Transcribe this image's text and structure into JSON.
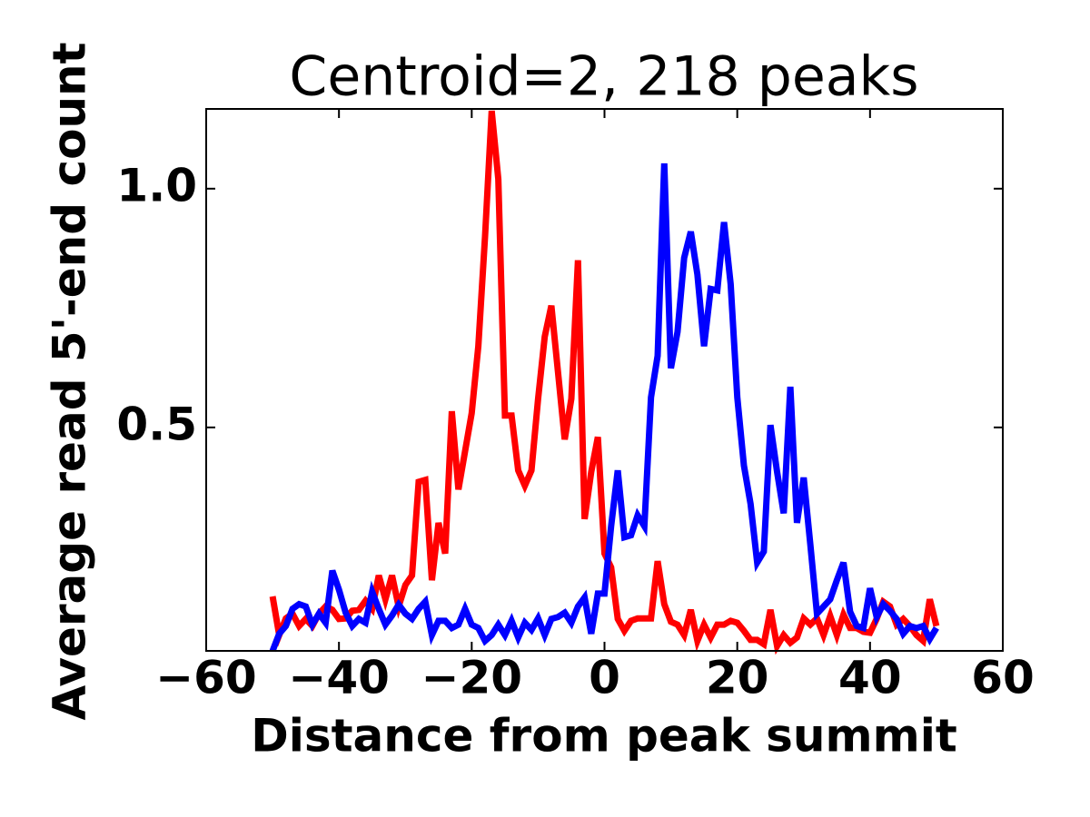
{
  "chart_data": {
    "type": "line",
    "title": "Centroid=2, 218 peaks",
    "xlabel": "Distance from peak summit",
    "ylabel": "Average read 5'-end count",
    "x": [
      -50,
      -49,
      -48,
      -47,
      -46,
      -45,
      -44,
      -43,
      -42,
      -41,
      -40,
      -39,
      -38,
      -37,
      -36,
      -35,
      -34,
      -33,
      -32,
      -31,
      -30,
      -29,
      -28,
      -27,
      -26,
      -25,
      -24,
      -23,
      -22,
      -21,
      -20,
      -19,
      -18,
      -17,
      -16,
      -15,
      -14,
      -13,
      -12,
      -11,
      -10,
      -9,
      -8,
      -7,
      -6,
      -5,
      -4,
      -3,
      -2,
      -1,
      0,
      1,
      2,
      3,
      4,
      5,
      6,
      7,
      8,
      9,
      10,
      11,
      12,
      13,
      14,
      15,
      16,
      17,
      18,
      19,
      20,
      21,
      22,
      23,
      24,
      25,
      26,
      27,
      28,
      29,
      30,
      31,
      32,
      33,
      34,
      35,
      36,
      37,
      38,
      39,
      40,
      41,
      42,
      43,
      44,
      45,
      46,
      47,
      48,
      49,
      50
    ],
    "series": [
      {
        "color": "#ff0000",
        "values": [
          0.146,
          0.065,
          0.1,
          0.11,
          0.084,
          0.099,
          0.084,
          0.11,
          0.125,
          0.118,
          0.099,
          0.1,
          0.116,
          0.118,
          0.137,
          0.12,
          0.19,
          0.14,
          0.19,
          0.125,
          0.17,
          0.19,
          0.386,
          0.39,
          0.18,
          0.3,
          0.236,
          0.534,
          0.37,
          0.45,
          0.53,
          0.67,
          0.9,
          1.163,
          1.02,
          0.525,
          0.525,
          0.41,
          0.378,
          0.41,
          0.56,
          0.69,
          0.755,
          0.616,
          0.475,
          0.56,
          0.85,
          0.308,
          0.407,
          0.48,
          0.236,
          0.207,
          0.099,
          0.074,
          0.095,
          0.1,
          0.1,
          0.1,
          0.22,
          0.13,
          0.093,
          0.087,
          0.065,
          0.118,
          0.053,
          0.087,
          0.06,
          0.087,
          0.087,
          0.095,
          0.091,
          0.074,
          0.055,
          0.055,
          0.046,
          0.118,
          0.042,
          0.065,
          0.049,
          0.06,
          0.1,
          0.087,
          0.1,
          0.065,
          0.105,
          0.065,
          0.108,
          0.08,
          0.08,
          0.072,
          0.07,
          0.099,
          0.135,
          0.125,
          0.087,
          0.099,
          0.084,
          0.065,
          0.053,
          0.14,
          0.084
        ]
      },
      {
        "color": "#0000ff",
        "values": [
          0.032,
          0.068,
          0.084,
          0.12,
          0.13,
          0.125,
          0.087,
          0.11,
          0.091,
          0.2,
          0.16,
          0.112,
          0.084,
          0.099,
          0.091,
          0.156,
          0.12,
          0.087,
          0.106,
          0.129,
          0.11,
          0.099,
          0.12,
          0.135,
          0.065,
          0.095,
          0.095,
          0.08,
          0.087,
          0.12,
          0.087,
          0.08,
          0.053,
          0.065,
          0.087,
          0.065,
          0.095,
          0.06,
          0.091,
          0.076,
          0.1,
          0.065,
          0.099,
          0.103,
          0.112,
          0.091,
          0.125,
          0.144,
          0.068,
          0.152,
          0.152,
          0.293,
          0.41,
          0.27,
          0.274,
          0.316,
          0.293,
          0.563,
          0.65,
          1.053,
          0.624,
          0.7,
          0.855,
          0.91,
          0.82,
          0.67,
          0.79,
          0.787,
          0.93,
          0.8,
          0.563,
          0.42,
          0.34,
          0.217,
          0.24,
          0.505,
          0.407,
          0.32,
          0.585,
          0.3,
          0.395,
          0.255,
          0.11,
          0.125,
          0.14,
          0.18,
          0.217,
          0.114,
          0.084,
          0.08,
          0.163,
          0.103,
          0.13,
          0.116,
          0.099,
          0.068,
          0.084,
          0.08,
          0.084,
          0.057,
          0.08
        ]
      }
    ],
    "xlim": [
      -60,
      60
    ],
    "ylim": [
      0.032,
      1.167
    ],
    "xticks": [
      {
        "value": -60,
        "label": "−60"
      },
      {
        "value": -40,
        "label": "−40"
      },
      {
        "value": -20,
        "label": "−20"
      },
      0,
      20,
      40,
      60
    ],
    "yticks": [
      0.5,
      {
        "value": 1,
        "label": "1.0"
      }
    ],
    "grid": false
  }
}
